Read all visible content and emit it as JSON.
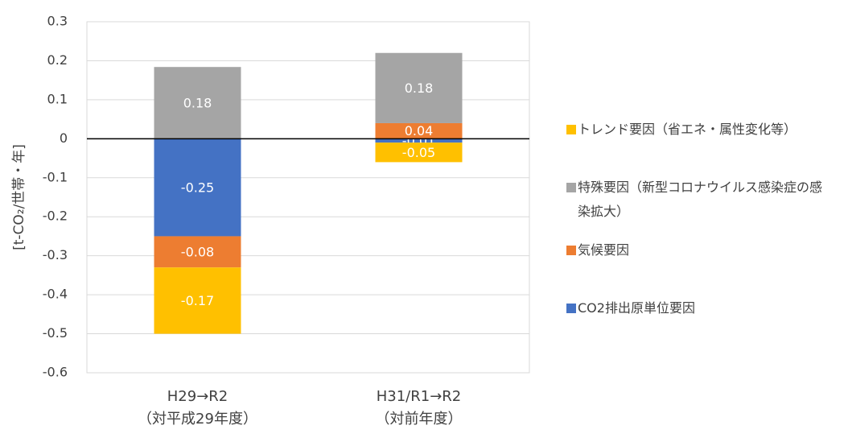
{
  "chart_data": {
    "type": "stacked_bar",
    "y_label": "[t-CO₂/世帯・年]",
    "categories": [
      "H29→R2\n（対平成29年度）",
      "H31/R1→R2\n（対前年度）"
    ],
    "series": [
      {
        "name": "CO2排出原単位要因",
        "color": "#4472c4",
        "values": [
          -0.25,
          -0.01
        ],
        "value_labels": [
          "-0.25",
          "-0.01"
        ]
      },
      {
        "name": "気候要因",
        "color": "#ed7d31",
        "values": [
          -0.08,
          0.04
        ],
        "value_labels": [
          "-0.08",
          "0.04"
        ]
      },
      {
        "name": "特殊要因（新型コロナウイルス感染症の感染拡大）",
        "color": "#a5a5a5",
        "values": [
          0.184,
          0.18
        ],
        "value_labels": [
          "0.18",
          "0.18"
        ]
      },
      {
        "name": "トレンド要因（省エネ・属性変化等）",
        "color": "#ffc000",
        "values": [
          -0.17,
          -0.05
        ],
        "value_labels": [
          "-0.17",
          "-0.05"
        ]
      }
    ],
    "ylim": [
      -0.6,
      0.3
    ],
    "yticks": [
      -0.6,
      -0.5,
      -0.4,
      -0.3,
      -0.2,
      -0.1,
      0,
      0.1,
      0.2,
      0.3
    ],
    "grid": true,
    "legend": "right"
  }
}
